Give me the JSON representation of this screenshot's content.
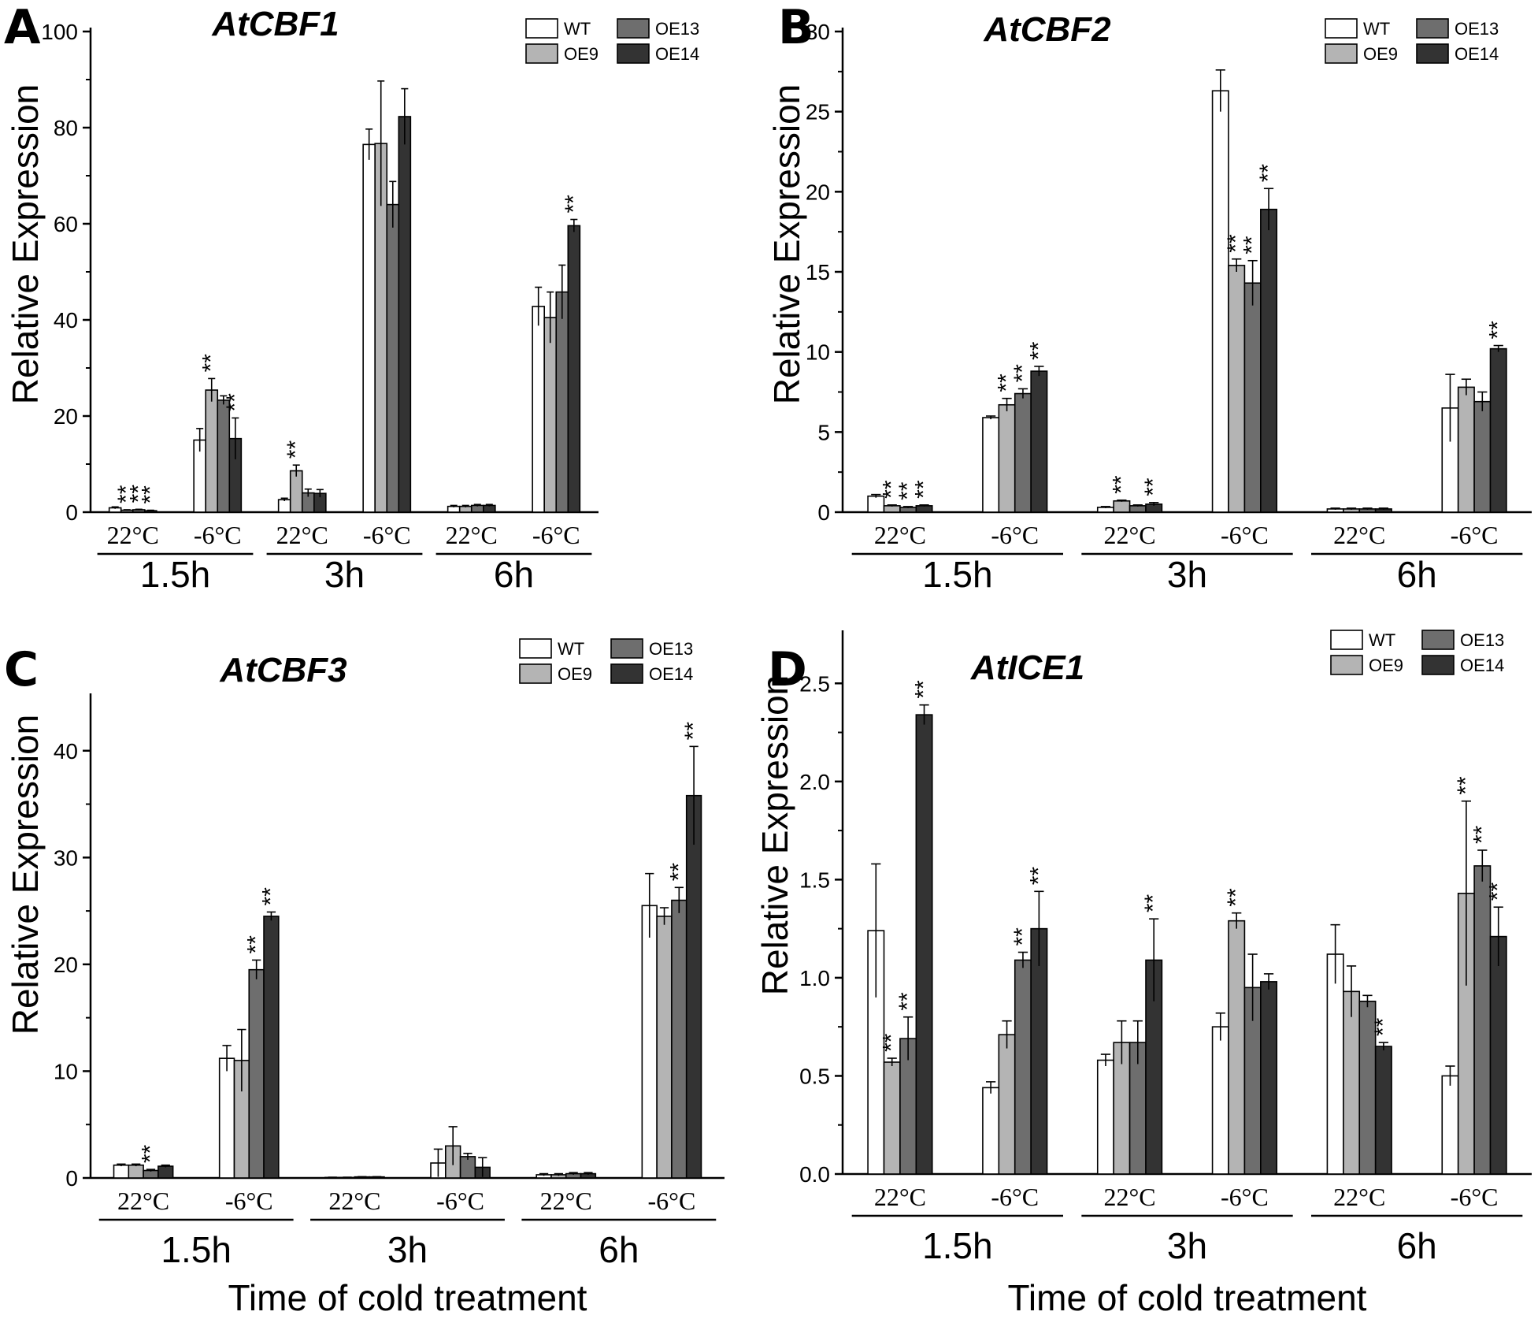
{
  "colors": {
    "WT": "#ffffff",
    "OE9": "#b4b4b4",
    "OE13": "#6e6e6e",
    "OE14": "#333333"
  },
  "chart_data": [
    {
      "panel": "A",
      "type": "bar",
      "title": "AtCBF1",
      "ylabel": "Relative Expression",
      "xlabel": "",
      "ylim": [
        0,
        100
      ],
      "yticks": [
        "0",
        "20",
        "40",
        "60",
        "80",
        "100"
      ],
      "ytick_values": [
        0,
        20,
        40,
        60,
        80,
        100
      ],
      "legend": [
        "WT",
        "OE9",
        "OE13",
        "OE14"
      ],
      "legend_position": "top-right",
      "groups": [
        {
          "time": "1.5h",
          "conditions": [
            "22°C",
            "-6°C"
          ]
        },
        {
          "time": "3h",
          "conditions": [
            "22°C",
            "-6°C"
          ]
        },
        {
          "time": "6h",
          "conditions": [
            "22°C",
            "-6°C"
          ]
        }
      ],
      "series": [
        {
          "name": "WT",
          "values": [
            0.9,
            15.0,
            2.6,
            76.5,
            1.2,
            42.8
          ],
          "errors": [
            0.2,
            2.4,
            0.3,
            3.2,
            0.2,
            4.0
          ]
        },
        {
          "name": "OE9",
          "values": [
            0.4,
            25.4,
            8.6,
            76.7,
            1.2,
            40.5
          ],
          "errors": [
            0.1,
            2.4,
            1.2,
            13.0,
            0.2,
            5.3
          ]
        },
        {
          "name": "OE13",
          "values": [
            0.5,
            23.3,
            4.0,
            64.0,
            1.4,
            45.8
          ],
          "errors": [
            0.1,
            0.9,
            0.8,
            4.8,
            0.2,
            5.6
          ]
        },
        {
          "name": "OE14",
          "values": [
            0.3,
            15.3,
            3.9,
            82.3,
            1.4,
            59.6
          ],
          "errors": [
            0.1,
            4.3,
            0.8,
            5.8,
            0.2,
            1.3
          ]
        }
      ],
      "significance": [
        {
          "series": "OE9",
          "index": 0,
          "label": "**"
        },
        {
          "series": "OE13",
          "index": 0,
          "label": "**"
        },
        {
          "series": "OE14",
          "index": 0,
          "label": "**"
        },
        {
          "series": "OE9",
          "index": 1,
          "label": "**"
        },
        {
          "series": "OE14",
          "index": 1,
          "label": "**"
        },
        {
          "series": "OE9",
          "index": 2,
          "label": "**"
        },
        {
          "series": "OE14",
          "index": 5,
          "label": "**"
        }
      ]
    },
    {
      "panel": "B",
      "type": "bar",
      "title": "AtCBF2",
      "ylabel": "Relative Expression",
      "xlabel": "",
      "ylim": [
        0,
        30
      ],
      "yticks": [
        "0",
        "5",
        "10",
        "15",
        "20",
        "25",
        "30"
      ],
      "ytick_values": [
        0,
        5,
        10,
        15,
        20,
        25,
        30
      ],
      "legend": [
        "WT",
        "OE9",
        "OE13",
        "OE14"
      ],
      "legend_position": "top-right",
      "groups": [
        {
          "time": "1.5h",
          "conditions": [
            "22°C",
            "-6°C"
          ]
        },
        {
          "time": "3h",
          "conditions": [
            "22°C",
            "-6°C"
          ]
        },
        {
          "time": "6h",
          "conditions": [
            "22°C",
            "-6°C"
          ]
        }
      ],
      "series": [
        {
          "name": "WT",
          "values": [
            1.0,
            5.9,
            0.3,
            26.3,
            0.2,
            6.5
          ],
          "errors": [
            0.1,
            0.1,
            0.05,
            1.3,
            0.05,
            2.1
          ]
        },
        {
          "name": "OE9",
          "values": [
            0.4,
            6.7,
            0.7,
            15.4,
            0.2,
            7.8
          ],
          "errors": [
            0.05,
            0.4,
            0.05,
            0.4,
            0.05,
            0.5
          ]
        },
        {
          "name": "OE13",
          "values": [
            0.3,
            7.4,
            0.4,
            14.3,
            0.2,
            6.9
          ],
          "errors": [
            0.05,
            0.3,
            0.05,
            1.4,
            0.05,
            0.6
          ]
        },
        {
          "name": "OE14",
          "values": [
            0.4,
            8.8,
            0.5,
            18.9,
            0.2,
            10.2
          ],
          "errors": [
            0.05,
            0.3,
            0.1,
            1.3,
            0.05,
            0.2
          ]
        }
      ],
      "significance": [
        {
          "series": "OE9",
          "index": 0,
          "label": "**"
        },
        {
          "series": "OE13",
          "index": 0,
          "label": "**"
        },
        {
          "series": "OE14",
          "index": 0,
          "label": "**"
        },
        {
          "series": "OE9",
          "index": 1,
          "label": "**"
        },
        {
          "series": "OE13",
          "index": 1,
          "label": "**"
        },
        {
          "series": "OE14",
          "index": 1,
          "label": "**"
        },
        {
          "series": "OE9",
          "index": 2,
          "label": "**"
        },
        {
          "series": "OE14",
          "index": 2,
          "label": "**"
        },
        {
          "series": "OE9",
          "index": 3,
          "label": "**"
        },
        {
          "series": "OE13",
          "index": 3,
          "label": "**"
        },
        {
          "series": "OE14",
          "index": 3,
          "label": "**"
        },
        {
          "series": "OE14",
          "index": 5,
          "label": "**"
        }
      ]
    },
    {
      "panel": "C",
      "type": "bar",
      "title": "AtCBF3",
      "ylabel": "Relative Expression",
      "xlabel": "Time of cold treatment",
      "ylim": [
        0,
        45
      ],
      "yticks": [
        "0",
        "10",
        "20",
        "30",
        "40"
      ],
      "ytick_values": [
        0,
        10,
        20,
        30,
        40
      ],
      "legend": [
        "WT",
        "OE9",
        "OE13",
        "OE14"
      ],
      "legend_position": "top-right",
      "groups": [
        {
          "time": "1.5h",
          "conditions": [
            "22°C",
            "-6°C"
          ]
        },
        {
          "time": "3h",
          "conditions": [
            "22°C",
            "-6°C"
          ]
        },
        {
          "time": "6h",
          "conditions": [
            "22°C",
            "-6°C"
          ]
        }
      ],
      "series": [
        {
          "name": "WT",
          "values": [
            1.2,
            11.2,
            0.05,
            1.4,
            0.3,
            25.5
          ],
          "errors": [
            0.1,
            1.2,
            0.02,
            1.3,
            0.1,
            3.0
          ]
        },
        {
          "name": "OE9",
          "values": [
            1.2,
            11.0,
            0.05,
            3.0,
            0.3,
            24.5
          ],
          "errors": [
            0.1,
            2.9,
            0.02,
            1.8,
            0.1,
            0.8
          ]
        },
        {
          "name": "OE13",
          "values": [
            0.7,
            19.5,
            0.1,
            2.0,
            0.4,
            26.0
          ],
          "errors": [
            0.1,
            0.9,
            0.02,
            0.3,
            0.1,
            1.2
          ]
        },
        {
          "name": "OE14",
          "values": [
            1.1,
            24.5,
            0.1,
            1.0,
            0.4,
            35.8
          ],
          "errors": [
            0.1,
            0.4,
            0.02,
            0.9,
            0.1,
            4.6
          ]
        }
      ],
      "significance": [
        {
          "series": "OE13",
          "index": 0,
          "label": "**"
        },
        {
          "series": "OE13",
          "index": 1,
          "label": "**"
        },
        {
          "series": "OE14",
          "index": 1,
          "label": "**"
        },
        {
          "series": "OE13",
          "index": 5,
          "label": "**"
        },
        {
          "series": "OE14",
          "index": 5,
          "label": "**"
        }
      ]
    },
    {
      "panel": "D",
      "type": "bar",
      "title": "AtICE1",
      "ylabel": "Relative Expression",
      "xlabel": "Time of cold treatment",
      "ylim": [
        0,
        2.75
      ],
      "yticks": [
        "0.0",
        "0.5",
        "1.0",
        "1.5",
        "2.0",
        "2.5"
      ],
      "ytick_values": [
        0,
        0.5,
        1.0,
        1.5,
        2.0,
        2.5
      ],
      "legend": [
        "WT",
        "OE9",
        "OE13",
        "OE14"
      ],
      "legend_position": "top-right",
      "groups": [
        {
          "time": "1.5h",
          "conditions": [
            "22°C",
            "-6°C"
          ]
        },
        {
          "time": "3h",
          "conditions": [
            "22°C",
            "-6°C"
          ]
        },
        {
          "time": "6h",
          "conditions": [
            "22°C",
            "-6°C"
          ]
        }
      ],
      "series": [
        {
          "name": "WT",
          "values": [
            1.24,
            0.44,
            0.58,
            0.75,
            1.12,
            0.5
          ],
          "errors": [
            0.34,
            0.03,
            0.03,
            0.07,
            0.15,
            0.05
          ]
        },
        {
          "name": "OE9",
          "values": [
            0.57,
            0.71,
            0.67,
            1.29,
            0.93,
            1.43
          ],
          "errors": [
            0.02,
            0.07,
            0.11,
            0.04,
            0.13,
            0.47
          ]
        },
        {
          "name": "OE13",
          "values": [
            0.69,
            1.09,
            0.67,
            0.95,
            0.88,
            1.57
          ],
          "errors": [
            0.11,
            0.04,
            0.11,
            0.17,
            0.03,
            0.08
          ]
        },
        {
          "name": "OE14",
          "values": [
            2.34,
            1.25,
            1.09,
            0.98,
            0.65,
            1.21
          ],
          "errors": [
            0.05,
            0.19,
            0.21,
            0.04,
            0.02,
            0.15
          ]
        }
      ],
      "significance": [
        {
          "series": "OE9",
          "index": 0,
          "label": "**"
        },
        {
          "series": "OE13",
          "index": 0,
          "label": "**"
        },
        {
          "series": "OE14",
          "index": 0,
          "label": "**"
        },
        {
          "series": "OE13",
          "index": 1,
          "label": "**"
        },
        {
          "series": "OE14",
          "index": 1,
          "label": "**"
        },
        {
          "series": "OE14",
          "index": 2,
          "label": "**"
        },
        {
          "series": "OE9",
          "index": 3,
          "label": "**"
        },
        {
          "series": "OE14",
          "index": 4,
          "label": "**"
        },
        {
          "series": "OE9",
          "index": 5,
          "label": "**"
        },
        {
          "series": "OE13",
          "index": 5,
          "label": "**"
        },
        {
          "series": "OE14",
          "index": 5,
          "label": "**"
        }
      ]
    }
  ]
}
